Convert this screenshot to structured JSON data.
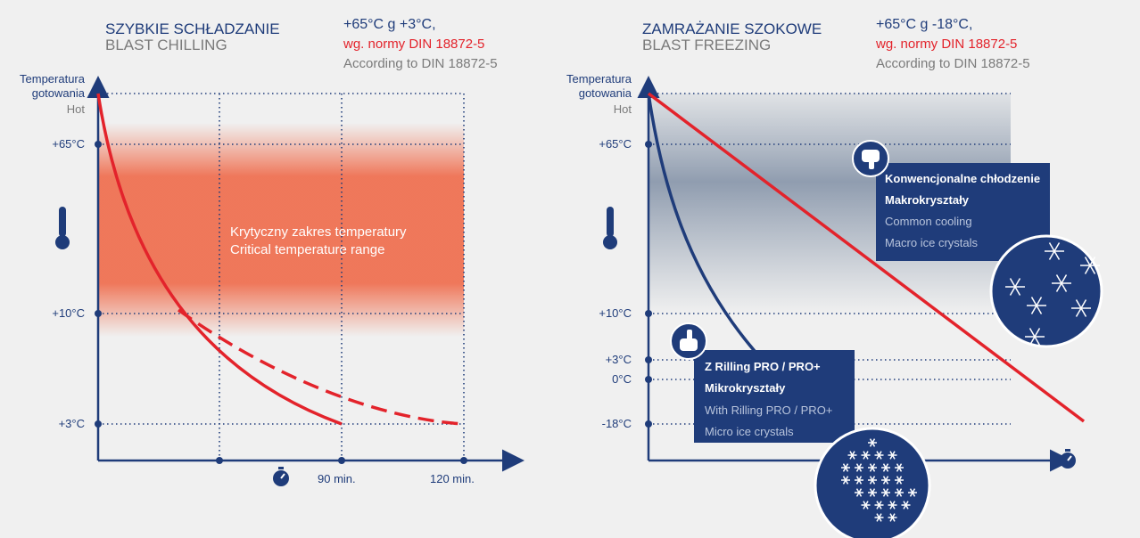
{
  "left_panel": {
    "title": "SZYBKIE SCHŁADZANIE",
    "subtitle": "BLAST CHILLING",
    "range": "+65°C g +3°C,",
    "norm": "wg. normy DIN 18872-5",
    "norm_en": "According to DIN 18872-5",
    "y_labels": [
      "Temperatura",
      "gotowania",
      "Hot",
      "+65°C",
      "+10°C",
      "+3°C"
    ],
    "band_label": [
      "Krytyczny zakres temperatury",
      "Critical temperature range"
    ],
    "x_labels": [
      "90 min.",
      "120 min."
    ]
  },
  "right_panel": {
    "title": "ZAMRAŻANIE SZOKOWE",
    "subtitle": "BLAST FREEZING",
    "range": "+65°C g -18°C,",
    "norm": "wg. normy DIN 18872-5",
    "norm_en": "According to DIN 18872-5",
    "y_labels": [
      "Temperatura",
      "gotowania",
      "Hot",
      "+65°C",
      "+10°C",
      "+3°C",
      "0°C",
      "-18°C"
    ],
    "conventional": [
      "Konwencjonalne chłodzenie",
      "Makrokryształy",
      "Common cooling",
      "Macro ice crystals"
    ],
    "rilling": [
      "Z Rilling PRO / PRO+",
      "Mikrokryształy",
      "With Rilling PRO / PRO+",
      "Micro ice crystals"
    ]
  }
}
